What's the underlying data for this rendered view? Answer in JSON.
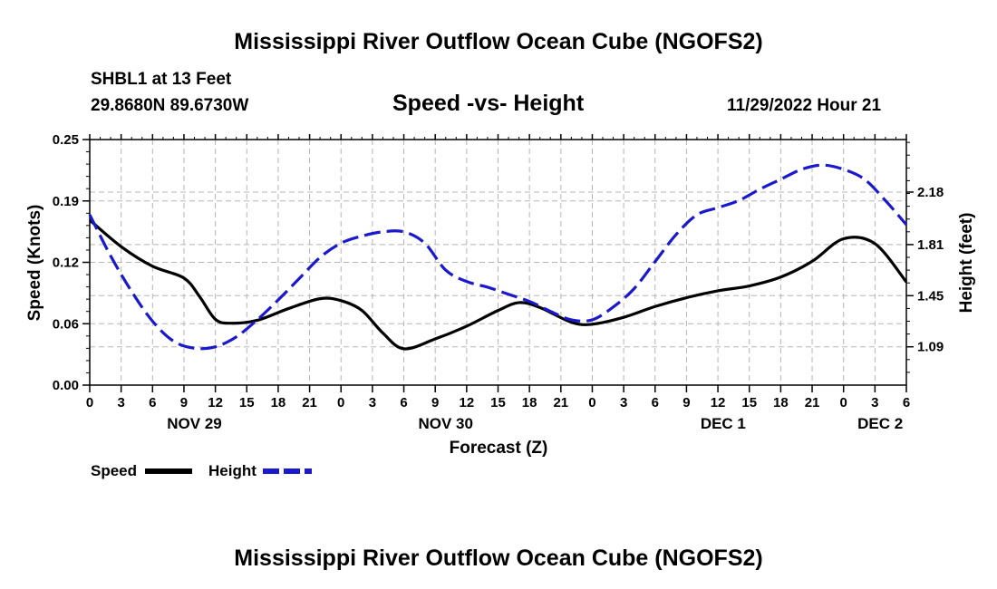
{
  "page": {
    "title": "Mississippi River Outflow Ocean Cube (NGOFS2)",
    "footer_title": "Mississippi River Outflow Ocean Cube (NGOFS2)",
    "station_line": "SHBL1 at 13 Feet",
    "coords_line": "29.8680N  89.6730W",
    "subtitle": "Speed -vs- Height",
    "timestamp": "11/29/2022 Hour 21"
  },
  "legend": {
    "speed_label": "Speed",
    "height_label": "Height",
    "speed_color": "#000000",
    "height_color": "#1a1acc"
  },
  "chart_data": {
    "type": "line",
    "title": "Speed -vs- Height",
    "xlabel": "Forecast (Z)",
    "ylabel": "Speed (Knots)",
    "y2label": "Height (feet)",
    "x_unit": "forecast hours from Nov 29 00Z",
    "xlim": [
      0,
      78
    ],
    "ylim": [
      0,
      0.25
    ],
    "y2lim": [
      0.82,
      2.55
    ],
    "grid": true,
    "x_tick_labels": [
      "0",
      "3",
      "6",
      "9",
      "12",
      "15",
      "18",
      "21",
      "0",
      "3",
      "6",
      "9",
      "12",
      "15",
      "18",
      "21",
      "0",
      "3",
      "6",
      "9",
      "12",
      "15",
      "18",
      "21",
      "0",
      "3",
      "6"
    ],
    "day_labels": [
      {
        "hour": 10,
        "label": "NOV 29"
      },
      {
        "hour": 34,
        "label": "NOV 30"
      },
      {
        "hour": 60.5,
        "label": "DEC 1"
      },
      {
        "hour": 75.5,
        "label": "DEC 2"
      }
    ],
    "y_ticks": [
      "0.00",
      "0.06",
      "0.12",
      "0.19",
      "0.25"
    ],
    "y_tick_values": [
      0,
      0.0625,
      0.125,
      0.1875,
      0.25
    ],
    "y2_ticks": [
      "1.09",
      "1.45",
      "1.81",
      "2.18"
    ],
    "y2_tick_values": [
      1.09,
      1.45,
      1.81,
      2.18
    ],
    "series": [
      {
        "name": "Speed",
        "axis": "left",
        "style": "solid",
        "x": [
          0,
          3,
          6,
          9,
          10.5,
          12,
          13.5,
          16,
          19,
          22,
          24,
          26,
          28,
          30,
          33,
          36,
          39,
          41,
          43,
          46,
          48,
          51,
          54,
          57,
          60,
          63,
          66,
          69,
          72,
          75,
          78
        ],
        "values": [
          0.168,
          0.141,
          0.121,
          0.109,
          0.09,
          0.067,
          0.063,
          0.066,
          0.078,
          0.088,
          0.086,
          0.076,
          0.053,
          0.037,
          0.047,
          0.06,
          0.076,
          0.084,
          0.079,
          0.064,
          0.062,
          0.069,
          0.08,
          0.089,
          0.096,
          0.101,
          0.11,
          0.126,
          0.149,
          0.144,
          0.105
        ]
      },
      {
        "name": "Height",
        "axis": "right",
        "style": "dashed",
        "x": [
          0,
          2,
          4,
          6,
          8,
          10,
          12,
          14,
          16,
          18,
          20,
          22,
          24,
          26,
          28,
          30,
          32,
          34,
          36,
          38,
          40,
          42,
          44,
          46,
          48,
          50,
          52,
          54,
          56,
          58,
          60,
          62,
          64,
          66,
          68,
          70,
          72,
          74,
          76,
          78
        ],
        "values": [
          2.02,
          1.73,
          1.48,
          1.27,
          1.13,
          1.08,
          1.09,
          1.16,
          1.28,
          1.42,
          1.57,
          1.72,
          1.82,
          1.87,
          1.9,
          1.9,
          1.82,
          1.63,
          1.55,
          1.51,
          1.46,
          1.41,
          1.34,
          1.28,
          1.28,
          1.37,
          1.5,
          1.69,
          1.88,
          2.02,
          2.07,
          2.12,
          2.2,
          2.27,
          2.34,
          2.37,
          2.34,
          2.27,
          2.12,
          1.95
        ]
      }
    ]
  }
}
